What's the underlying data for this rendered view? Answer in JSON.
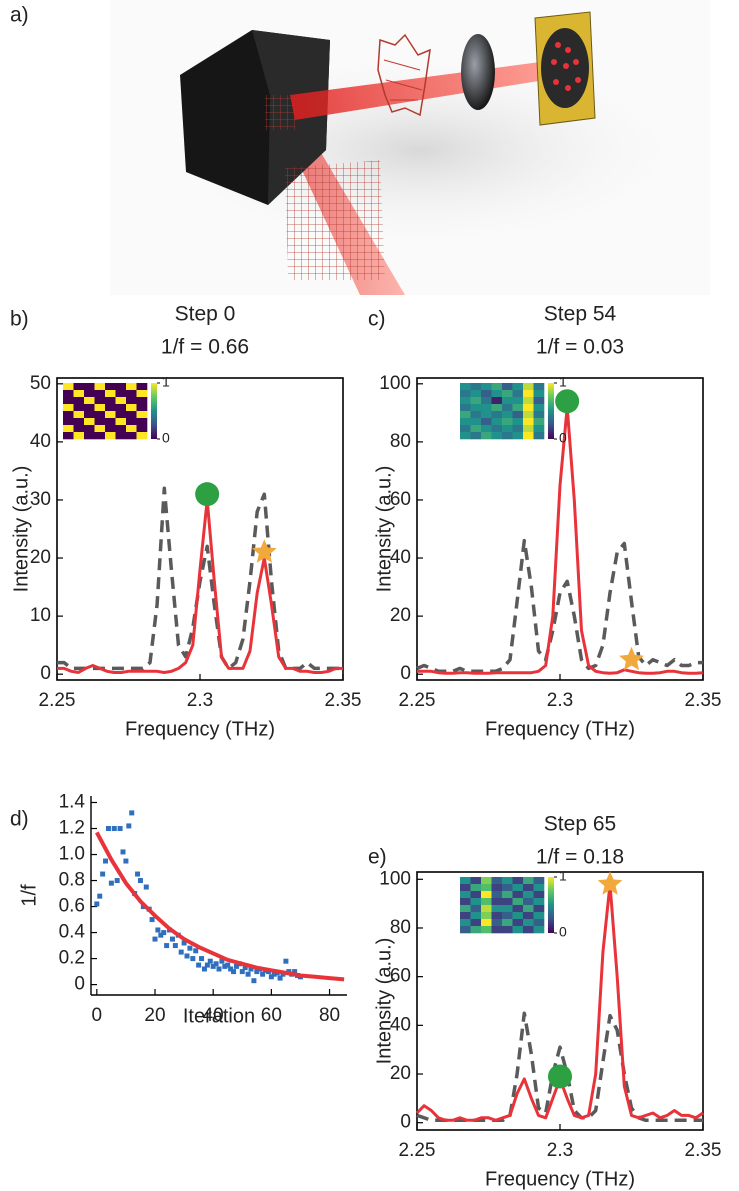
{
  "illustration_label": "a)",
  "chart_data": [
    {
      "type": "line",
      "panel_label": "b)",
      "title": "Step 0",
      "subtitle": "1/f = 0.66",
      "x_label": "Frequency (THz)",
      "y_label": "Intensity (a.u.)",
      "xlim": [
        2.25,
        2.35
      ],
      "xticks": [
        2.25,
        2.3,
        2.35
      ],
      "ylim": [
        -1,
        51
      ],
      "yticks": [
        0,
        10,
        20,
        30,
        40,
        50
      ],
      "x": [
        2.25,
        2.2525,
        2.255,
        2.2575,
        2.26,
        2.2625,
        2.265,
        2.2675,
        2.27,
        2.2725,
        2.275,
        2.2775,
        2.28,
        2.2825,
        2.285,
        2.2875,
        2.29,
        2.2925,
        2.295,
        2.2975,
        2.3,
        2.3025,
        2.305,
        2.3075,
        2.31,
        2.3125,
        2.315,
        2.3175,
        2.32,
        2.3225,
        2.325,
        2.3275,
        2.33,
        2.3325,
        2.335,
        2.3375,
        2.34,
        2.3425,
        2.345,
        2.3475,
        2.35
      ],
      "series": [
        {
          "color": "#5a5a5a",
          "dash": true,
          "values": [
            2,
            2,
            1,
            1,
            1,
            1,
            1,
            1,
            1,
            1,
            1,
            1,
            1,
            2,
            12,
            32,
            18,
            5,
            3,
            8,
            16,
            22,
            12,
            3,
            1,
            2,
            6,
            16,
            28,
            31,
            16,
            4,
            1,
            1,
            1,
            2,
            1,
            1,
            1,
            1,
            1
          ]
        },
        {
          "color": "#e8333a",
          "dash": false,
          "values": [
            1,
            1,
            0.5,
            0.3,
            1,
            1.5,
            1,
            0.5,
            0.3,
            0.3,
            0.5,
            0.5,
            0.5,
            0.5,
            0.5,
            0.3,
            0.5,
            1,
            2,
            5,
            18,
            30,
            16,
            3,
            1,
            1,
            1,
            4,
            14,
            20,
            12,
            3,
            1,
            1,
            0.5,
            0.5,
            0.3,
            0.3,
            0.5,
            1,
            1
          ]
        }
      ],
      "markers": [
        {
          "shape": "circle",
          "color": "#2ca042",
          "x": 2.3025,
          "y": 31
        },
        {
          "shape": "star",
          "color": "#f2a93b",
          "x": 2.3225,
          "y": 21
        }
      ],
      "inset": {
        "clim": [
          0,
          1
        ],
        "cticks": [
          0,
          1
        ],
        "matrix": [
          [
            1,
            0,
            0,
            1,
            0,
            0,
            1,
            0
          ],
          [
            0,
            1,
            0,
            0,
            1,
            0,
            0,
            1
          ],
          [
            0,
            0,
            1,
            0,
            0,
            1,
            0,
            0
          ],
          [
            1,
            0,
            0,
            1,
            0,
            0,
            1,
            0
          ],
          [
            0,
            1,
            0,
            0,
            1,
            0,
            0,
            1
          ],
          [
            0,
            0,
            1,
            0,
            0,
            1,
            0,
            0
          ],
          [
            1,
            0,
            0,
            1,
            0,
            0,
            1,
            0
          ],
          [
            0,
            1,
            0,
            0,
            1,
            0,
            0,
            1
          ]
        ]
      }
    },
    {
      "type": "line",
      "panel_label": "c)",
      "title": "Step 54",
      "subtitle": "1/f = 0.03",
      "x_label": "Frequency (THz)",
      "y_label": "Intensity (a.u.)",
      "xlim": [
        2.25,
        2.35
      ],
      "xticks": [
        2.25,
        2.3,
        2.35
      ],
      "ylim": [
        -2,
        102
      ],
      "yticks": [
        0,
        20,
        40,
        60,
        80,
        100
      ],
      "x": [
        2.25,
        2.2525,
        2.255,
        2.2575,
        2.26,
        2.2625,
        2.265,
        2.2675,
        2.27,
        2.2725,
        2.275,
        2.2775,
        2.28,
        2.2825,
        2.285,
        2.2875,
        2.29,
        2.2925,
        2.295,
        2.2975,
        2.3,
        2.3025,
        2.305,
        2.3075,
        2.31,
        2.3125,
        2.315,
        2.3175,
        2.32,
        2.3225,
        2.325,
        2.3275,
        2.33,
        2.3325,
        2.335,
        2.3375,
        2.34,
        2.3425,
        2.345,
        2.3475,
        2.35
      ],
      "series": [
        {
          "color": "#5a5a5a",
          "dash": true,
          "values": [
            2,
            3,
            2,
            1,
            1,
            1,
            2,
            1,
            1,
            1,
            1,
            1,
            2,
            5,
            25,
            46,
            30,
            8,
            5,
            15,
            28,
            32,
            20,
            5,
            2,
            3,
            10,
            28,
            42,
            45,
            25,
            6,
            3,
            5,
            4,
            3,
            5,
            3,
            3,
            4,
            4
          ]
        },
        {
          "color": "#e8333a",
          "dash": false,
          "values": [
            1,
            1,
            1,
            0.5,
            0.3,
            0.3,
            0.5,
            0.5,
            0.3,
            0.3,
            0.3,
            0.5,
            0.5,
            0.5,
            0.5,
            0.5,
            0.5,
            1,
            3,
            20,
            65,
            92,
            60,
            15,
            3,
            1,
            0.5,
            0.3,
            0.5,
            1.5,
            1,
            0.5,
            0.3,
            0.3,
            0.5,
            1,
            1,
            0.5,
            0.3,
            0.3,
            0.5
          ]
        }
      ],
      "markers": [
        {
          "shape": "circle",
          "color": "#2ca042",
          "x": 2.3025,
          "y": 94
        },
        {
          "shape": "star",
          "color": "#f2a93b",
          "x": 2.325,
          "y": 5
        }
      ],
      "inset": {
        "clim": [
          0,
          1
        ],
        "cticks": [
          0,
          1
        ],
        "matrix": [
          [
            0.5,
            0.4,
            0.5,
            0.6,
            0.3,
            0.5,
            0.9,
            0.4
          ],
          [
            0.4,
            0.5,
            0.3,
            0.5,
            0.6,
            0.4,
            1,
            0.5
          ],
          [
            0.5,
            0.6,
            0.4,
            0.1,
            0.5,
            0.5,
            0.9,
            0.3
          ],
          [
            0.4,
            0.5,
            0.5,
            0.6,
            0.4,
            0.6,
            1,
            0.5
          ],
          [
            0.6,
            0.4,
            0.5,
            0.4,
            0.5,
            0.3,
            0.9,
            0.4
          ],
          [
            0.5,
            0.5,
            0.3,
            0.5,
            0.6,
            0.5,
            1,
            0.6
          ],
          [
            0.4,
            0.6,
            0.5,
            0.4,
            0.5,
            0.4,
            0.9,
            0.5
          ],
          [
            0.5,
            0.4,
            0.6,
            0.5,
            0.4,
            0.5,
            1,
            0.4
          ]
        ]
      }
    },
    {
      "type": "scatter",
      "panel_label": "d)",
      "x_label": "Iteration",
      "y_label": "1/f",
      "xlim": [
        -2,
        86
      ],
      "xticks": [
        0,
        20,
        40,
        60,
        80
      ],
      "ylim": [
        -0.08,
        1.45
      ],
      "yticks": [
        0,
        0.2,
        0.4,
        0.6,
        0.8,
        {
          "value": 1,
          "label": "1.0"
        },
        1.2,
        1.4
      ],
      "series": [
        {
          "color": "#2f6fbf",
          "mode": "markers",
          "x": [
            0,
            1,
            2,
            3,
            4,
            5,
            6,
            7,
            8,
            9,
            10,
            11,
            12,
            13,
            14,
            15,
            16,
            17,
            18,
            19,
            20,
            21,
            22,
            23,
            24,
            25,
            26,
            27,
            28,
            29,
            30,
            31,
            32,
            33,
            34,
            35,
            36,
            37,
            38,
            39,
            40,
            41,
            42,
            43,
            44,
            45,
            46,
            47,
            48,
            49,
            50,
            51,
            52,
            53,
            54,
            55,
            56,
            57,
            58,
            59,
            60,
            61,
            62,
            63,
            64,
            65,
            66,
            67,
            68,
            69,
            70
          ],
          "values": [
            0.62,
            0.68,
            0.85,
            0.95,
            1.2,
            0.78,
            1.2,
            0.8,
            1.2,
            1.02,
            0.95,
            1.22,
            1.32,
            0.7,
            0.85,
            0.8,
            0.6,
            0.75,
            0.58,
            0.5,
            0.35,
            0.42,
            0.38,
            0.4,
            0.3,
            0.42,
            0.35,
            0.3,
            0.38,
            0.25,
            0.32,
            0.22,
            0.28,
            0.2,
            0.26,
            0.15,
            0.2,
            0.12,
            0.15,
            0.18,
            0.14,
            0.16,
            0.12,
            0.18,
            0.14,
            0.15,
            0.12,
            0.1,
            0.14,
            0.16,
            0.1,
            0.13,
            0.08,
            0.12,
            0.03,
            0.1,
            0.12,
            0.08,
            0.11,
            0.1,
            0.06,
            0.08,
            0.09,
            0.05,
            0.08,
            0.18,
            0.1,
            0.08,
            0.1,
            0.07,
            0.06
          ]
        },
        {
          "color": "#e8333a",
          "mode": "line",
          "x": [
            0,
            5,
            10,
            15,
            20,
            25,
            30,
            35,
            40,
            45,
            50,
            55,
            60,
            65,
            70,
            75,
            80,
            85
          ],
          "values": [
            1.17,
            0.96,
            0.78,
            0.64,
            0.53,
            0.43,
            0.35,
            0.29,
            0.24,
            0.19,
            0.16,
            0.13,
            0.11,
            0.09,
            0.07,
            0.06,
            0.05,
            0.04
          ]
        }
      ]
    },
    {
      "type": "line",
      "panel_label": "e)",
      "title": "Step 65",
      "subtitle": "1/f = 0.18",
      "x_label": "Frequency (THz)",
      "y_label": "Intensity (a.u.)",
      "xlim": [
        2.25,
        2.35
      ],
      "xticks": [
        2.25,
        2.3,
        2.35
      ],
      "ylim": [
        -3,
        103
      ],
      "yticks": [
        0,
        20,
        40,
        60,
        80,
        100
      ],
      "x": [
        2.25,
        2.2525,
        2.255,
        2.2575,
        2.26,
        2.2625,
        2.265,
        2.2675,
        2.27,
        2.2725,
        2.275,
        2.2775,
        2.28,
        2.2825,
        2.285,
        2.2875,
        2.29,
        2.2925,
        2.295,
        2.2975,
        2.3,
        2.3025,
        2.305,
        2.3075,
        2.31,
        2.3125,
        2.315,
        2.3175,
        2.32,
        2.3225,
        2.325,
        2.3275,
        2.33,
        2.3325,
        2.335,
        2.3375,
        2.34,
        2.3425,
        2.345,
        2.3475,
        2.35
      ],
      "series": [
        {
          "color": "#5a5a5a",
          "dash": true,
          "values": [
            3,
            2,
            1,
            1,
            1,
            1,
            1,
            1,
            1,
            1,
            1,
            1,
            1,
            3,
            20,
            45,
            28,
            6,
            4,
            20,
            31,
            20,
            5,
            2,
            2,
            5,
            25,
            44,
            38,
            20,
            6,
            2,
            1,
            1,
            1,
            1,
            1,
            1,
            1,
            1,
            1
          ]
        },
        {
          "color": "#e8333a",
          "dash": false,
          "values": [
            4,
            7,
            5,
            2,
            1,
            1,
            2,
            1,
            1,
            2,
            2,
            1,
            2,
            3,
            12,
            18,
            10,
            3,
            2,
            10,
            18,
            10,
            3,
            2,
            3,
            20,
            70,
            98,
            60,
            15,
            3,
            2,
            3,
            4,
            2,
            3,
            5,
            3,
            3,
            2,
            4
          ]
        }
      ],
      "markers": [
        {
          "shape": "circle",
          "color": "#2ca042",
          "x": 2.3,
          "y": 19
        },
        {
          "shape": "star",
          "color": "#f2a93b",
          "x": 2.3175,
          "y": 98
        }
      ],
      "inset": {
        "clim": [
          0,
          1
        ],
        "cticks": [
          0,
          1
        ],
        "matrix": [
          [
            0.5,
            0.2,
            0.8,
            0.3,
            0.5,
            0.2,
            0.6,
            0.3
          ],
          [
            0.2,
            0.6,
            0.7,
            0.2,
            0.3,
            0.5,
            0.2,
            0.5
          ],
          [
            0.5,
            0.2,
            1,
            0.3,
            0.6,
            0.2,
            0.5,
            0.2
          ],
          [
            0.2,
            0.5,
            0.7,
            0.2,
            0.2,
            0.6,
            0.3,
            0.5
          ],
          [
            0.6,
            0.3,
            0.9,
            0.5,
            0.5,
            0.2,
            0.6,
            0.2
          ],
          [
            0.2,
            0.5,
            0.8,
            0.2,
            0.3,
            0.5,
            0.2,
            0.5
          ],
          [
            0.5,
            0.2,
            1,
            0.3,
            0.6,
            0.2,
            0.5,
            0.3
          ],
          [
            0.3,
            0.6,
            0.7,
            0.2,
            0.2,
            0.5,
            0.2,
            0.5
          ]
        ]
      }
    }
  ]
}
